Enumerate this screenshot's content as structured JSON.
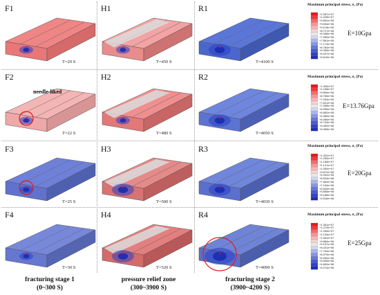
{
  "panels": [
    {
      "id": "F1",
      "time": "T=20 S",
      "top": "#f08585",
      "front": "#e87777",
      "side": "#d66a6a",
      "grey": false,
      "blob": "small",
      "circle": false
    },
    {
      "id": "H1",
      "time": "T=450 S",
      "top": "#f2a3a3",
      "front": "#e88c8c",
      "side": "#cf7272",
      "grey": true,
      "blob": "small",
      "circle": false
    },
    {
      "id": "R1",
      "time": "T=4100 S",
      "top": "#5a76d8",
      "front": "#4b67cc",
      "side": "#3f58b0",
      "grey": false,
      "blob": "medium",
      "circle": false
    },
    {
      "id": "F2",
      "time": "T=22 S",
      "top": "#f4b5b5",
      "front": "#efa8a8",
      "side": "#d99595",
      "grey": false,
      "blob": "small",
      "circle": true
    },
    {
      "id": "H2",
      "time": "T=480 S",
      "top": "#ef8f8f",
      "front": "#e27878",
      "side": "#c86565",
      "grey": true,
      "blob": "small",
      "circle": false
    },
    {
      "id": "R2",
      "time": "T=4050 S",
      "top": "#6e86de",
      "front": "#5c74d0",
      "side": "#4b60b4",
      "grey": false,
      "blob": "medium",
      "circle": false
    },
    {
      "id": "F3",
      "time": "T=25 S",
      "top": "#6f80d9",
      "front": "#6072cd",
      "side": "#5060b0",
      "grey": false,
      "blob": "small",
      "circle": true
    },
    {
      "id": "H3",
      "time": "T=500 S",
      "top": "#e58a8a",
      "front": "#d77373",
      "side": "#bd5f5f",
      "grey": true,
      "blob": "medium",
      "circle": false
    },
    {
      "id": "R3",
      "time": "T=4030 S",
      "top": "#6f86da",
      "front": "#5b70cd",
      "side": "#4b5eb0",
      "grey": false,
      "blob": "medium",
      "circle": false
    },
    {
      "id": "F4",
      "time": "T=30 S",
      "top": "#7788db",
      "front": "#6677cf",
      "side": "#5565b2",
      "grey": false,
      "blob": "small",
      "circle": false
    },
    {
      "id": "H4",
      "time": "T=520 S",
      "top": "#e47f7f",
      "front": "#d46b6b",
      "side": "#b95858",
      "grey": true,
      "blob": "medium",
      "circle": false
    },
    {
      "id": "R4",
      "time": "T=4090 S",
      "top": "#6f84d6",
      "front": "#5c6fc9",
      "side": "#4b5dad",
      "grey": false,
      "blob": "large",
      "circle": true
    }
  ],
  "annotation": "needle-liked",
  "colorbars": [
    {
      "title": "Maximum principal stress, σ₁ (Pa)",
      "E": "E=10Gpa",
      "ticks": [
        "+1.067e+07",
        "+1.028e+07",
        "+9.892e+06",
        "+9.504e+06",
        "+9.115e+06",
        "+8.727e+06",
        "+8.338e+06",
        "+7.950e+06",
        "+7.561e+06",
        "+7.173e+06",
        "+6.784e+06",
        "+6.396e+06",
        "+6.007e+06",
        "+5.619e+06"
      ]
    },
    {
      "title": "Maximum principal stress, σ₁ (Pa)",
      "E": "E=13.76Gpa",
      "ticks": [
        "+1.326e+07",
        "+1.198e+07",
        "+9.806e+06",
        "+8.765e+06",
        "+7.934e+06",
        "+7.621e+06",
        "+7.308e+06",
        "+6.995e+06",
        "+6.682e+06",
        "+6.369e+06",
        "+6.056e+06",
        "+5.743e+06",
        "+5.460e+06",
        "+5.398e+06"
      ]
    },
    {
      "title": "Maximum principal stress, σ₁ (Pa)",
      "E": "E=20Gpa",
      "ticks": [
        "+1.322e+07",
        "+1.255e+07",
        "+1.188e+07",
        "+1.121e+07",
        "+1.054e+07",
        "+9.872e+06",
        "+9.202e+06",
        "+8.533e+06",
        "+7.863e+06",
        "+7.194e+06",
        "+6.525e+06",
        "+5.855e+06",
        "+5.186e+06",
        "+4.516e+06"
      ]
    },
    {
      "title": "Maximum principal stress, σ₁ (Pa)",
      "E": "E=25Gpa",
      "ticks": [
        "+1.351e+07",
        "+1.279e+07",
        "+1.206e+07",
        "+1.134e+07",
        "+1.061e+07",
        "+9.884e+06",
        "+9.157e+06",
        "+8.431e+06",
        "+7.704e+06",
        "+6.979e+06",
        "+6.252e+06",
        "+5.526e+06",
        "+4.800e+06",
        "+4.074e+06"
      ]
    }
  ],
  "colorbar_colors": [
    "#e41a1c",
    "#ef3b3b",
    "#f46a6a",
    "#f79494",
    "#f8b5b5",
    "#f5d2d2",
    "#e8e8e8",
    "#d0d6f0",
    "#aab6ea",
    "#8797e2",
    "#6877d8",
    "#4a5bcf",
    "#3243c4",
    "#1f2fb8"
  ],
  "stages": [
    {
      "line1": "fracturing stage 1",
      "line2": "(0~300 S)"
    },
    {
      "line1": "pressure relief zone",
      "line2": "(300~3900 S)"
    },
    {
      "line1": "fracturing stage 2",
      "line2": "(3900~4200 S)"
    }
  ]
}
